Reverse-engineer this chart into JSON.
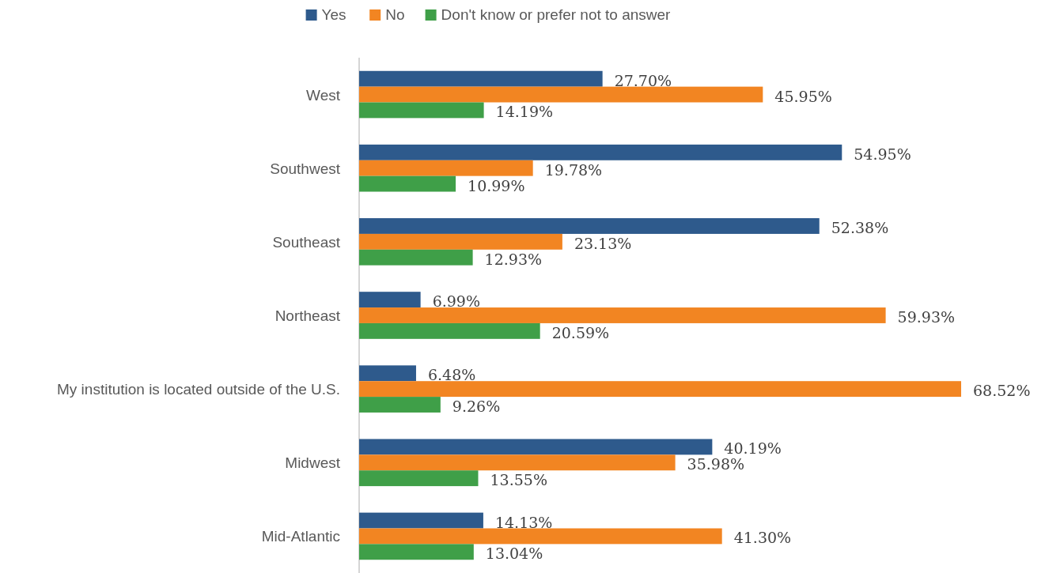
{
  "chart_data": {
    "type": "bar",
    "orientation": "horizontal",
    "legend": "top",
    "categories": [
      "West",
      "Southwest",
      "Southeast",
      "Northeast",
      "My institution is located outside of the U.S.",
      "Midwest",
      "Mid-Atlantic"
    ],
    "series": [
      {
        "name": "Yes",
        "color": "#2e5a8c",
        "values": [
          27.7,
          54.95,
          52.38,
          6.99,
          6.48,
          40.19,
          14.13
        ],
        "value_labels": [
          "27.70%",
          "54.95%",
          "52.38%",
          "6.99%",
          "6.48%",
          "40.19%",
          "14.13%"
        ]
      },
      {
        "name": "No",
        "color": "#f28522",
        "values": [
          45.95,
          19.78,
          23.13,
          59.93,
          68.52,
          35.98,
          41.3
        ],
        "value_labels": [
          "45.95%",
          "19.78%",
          "23.13%",
          "59.93%",
          "68.52%",
          "35.98%",
          "41.30%"
        ]
      },
      {
        "name": "Don't know or prefer not to answer",
        "color": "#3f9f48",
        "values": [
          14.19,
          10.99,
          12.93,
          20.59,
          9.26,
          13.55,
          13.04
        ],
        "value_labels": [
          "14.19%",
          "10.99%",
          "12.93%",
          "20.59%",
          "9.26%",
          "13.55%",
          "13.04%"
        ]
      }
    ]
  }
}
